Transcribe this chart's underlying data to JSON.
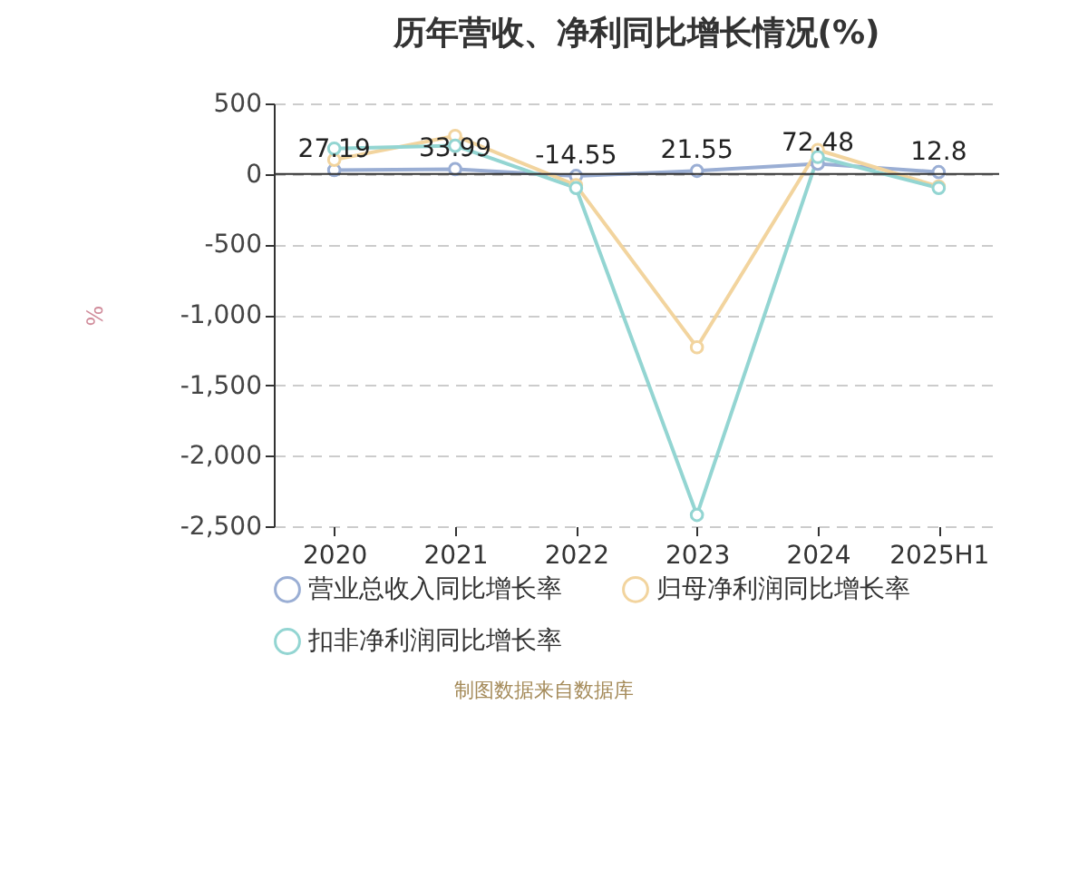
{
  "chart_data": {
    "type": "line",
    "title": "历年营收、净利同比增长情况(%)",
    "ylabel": "%",
    "categories": [
      "2020",
      "2021",
      "2022",
      "2023",
      "2024",
      "2025H1"
    ],
    "series": [
      {
        "name": "营业总收入同比增长率",
        "color": "#9aaed4",
        "values": [
          27.19,
          33.99,
          -14.55,
          21.55,
          72.48,
          12.8
        ],
        "value_labels": [
          "27.19",
          "33.99",
          "-14.55",
          "21.55",
          "72.48",
          "12.8"
        ]
      },
      {
        "name": "归母净利润同比增长率",
        "color": "#f2d49e",
        "values": [
          100,
          270,
          -80,
          -1230,
          170,
          -90
        ]
      },
      {
        "name": "扣非净利润同比增长率",
        "color": "#93d5d2",
        "values": [
          180,
          200,
          -100,
          -2420,
          120,
          -100
        ]
      }
    ],
    "ylim": [
      -2500,
      500
    ],
    "yticks": [
      {
        "value": -2500,
        "label": "-2,500"
      },
      {
        "value": -2000,
        "label": "-2,000"
      },
      {
        "value": -1500,
        "label": "-1,500"
      },
      {
        "value": -1000,
        "label": "-1,000"
      },
      -500,
      0,
      500
    ],
    "grid": "y",
    "legend": "bottom",
    "marker": "circle",
    "line_style": "solid",
    "annotations": [
      "制图数据来自数据库"
    ]
  }
}
